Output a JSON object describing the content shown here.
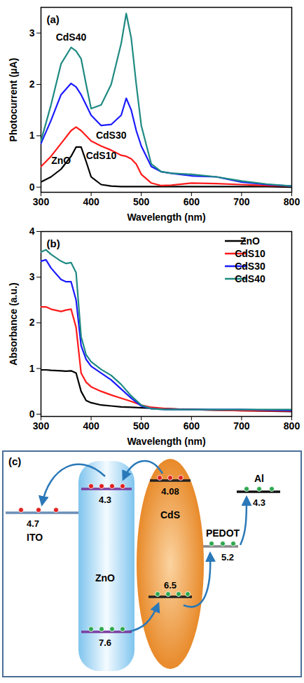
{
  "chart_data": [
    {
      "type": "line",
      "title": "(a)",
      "xlabel": "Wavelength (nm)",
      "ylabel": "Photocurrent (μA)",
      "x": [
        300,
        320,
        340,
        360,
        370,
        380,
        390,
        400,
        420,
        440,
        460,
        470,
        480,
        490,
        500,
        520,
        540,
        560,
        600,
        650,
        700,
        750,
        800
      ],
      "xlim": [
        300,
        800
      ],
      "xticks": [
        300,
        400,
        500,
        600,
        700,
        800
      ],
      "ylim": [
        -0.1,
        3.5
      ],
      "yticks": [
        0,
        1,
        2,
        3
      ],
      "series": [
        {
          "name": "ZnO",
          "color": "#000000",
          "values": [
            0.1,
            0.2,
            0.35,
            0.6,
            0.78,
            0.78,
            0.5,
            0.2,
            0.05,
            0.02,
            0.01,
            0.01,
            0.01,
            0.01,
            0.01,
            0.01,
            0.01,
            0.01,
            0.01,
            0.01,
            0.01,
            0.01,
            0
          ]
        },
        {
          "name": "CdS10",
          "color": "#ff1a1a",
          "values": [
            0.4,
            0.6,
            0.85,
            1.1,
            1.17,
            1.1,
            1.0,
            0.9,
            0.8,
            0.72,
            0.62,
            0.6,
            0.55,
            0.45,
            0.25,
            0.08,
            0.03,
            0.04,
            0.08,
            0.07,
            0.05,
            0.03,
            0.02
          ]
        },
        {
          "name": "CdS30",
          "color": "#1a1aff",
          "values": [
            0.85,
            1.3,
            1.8,
            2.02,
            1.95,
            1.8,
            1.6,
            1.4,
            1.2,
            1.22,
            1.4,
            1.73,
            1.5,
            1.1,
            0.8,
            0.4,
            0.3,
            0.27,
            0.22,
            0.2,
            0.1,
            0.05,
            0.02
          ]
        },
        {
          "name": "CdS40",
          "color": "#1f8a82",
          "values": [
            0.9,
            1.6,
            2.4,
            2.72,
            2.65,
            2.5,
            2.0,
            1.53,
            1.6,
            2.0,
            2.8,
            3.38,
            2.9,
            2.0,
            1.2,
            0.45,
            0.3,
            0.27,
            0.25,
            0.2,
            0.12,
            0.06,
            0.02
          ]
        }
      ]
    },
    {
      "type": "line",
      "title": "(b)",
      "xlabel": "Wavelength (nm)",
      "ylabel": "Absorbance (a.u.)",
      "x": [
        300,
        310,
        320,
        340,
        350,
        360,
        370,
        380,
        390,
        400,
        420,
        440,
        460,
        480,
        500,
        520,
        550,
        600,
        700,
        800
      ],
      "xlim": [
        300,
        800
      ],
      "xticks": [
        300,
        400,
        500,
        600,
        700,
        800
      ],
      "ylim": [
        -0.05,
        4
      ],
      "yticks": [
        0,
        1,
        2,
        3,
        4
      ],
      "legend": "top-right",
      "series": [
        {
          "name": "ZnO",
          "color": "#000000",
          "values": [
            0.97,
            0.97,
            0.96,
            0.95,
            0.94,
            0.95,
            0.9,
            0.5,
            0.3,
            0.25,
            0.2,
            0.18,
            0.16,
            0.15,
            0.14,
            0.13,
            0.12,
            0.1,
            0.08,
            0.06
          ]
        },
        {
          "name": "CdS10",
          "color": "#ff1a1a",
          "values": [
            2.35,
            2.35,
            2.3,
            2.25,
            2.28,
            2.3,
            1.9,
            0.9,
            0.7,
            0.6,
            0.5,
            0.42,
            0.35,
            0.28,
            0.2,
            0.15,
            0.12,
            0.1,
            0.08,
            0.07
          ]
        },
        {
          "name": "CdS30",
          "color": "#1a1aff",
          "values": [
            3.35,
            3.38,
            3.2,
            2.95,
            2.9,
            2.9,
            2.5,
            1.5,
            1.2,
            1.05,
            0.9,
            0.75,
            0.55,
            0.35,
            0.18,
            0.12,
            0.1,
            0.1,
            0.1,
            0.08
          ]
        },
        {
          "name": "CdS40",
          "color": "#1f8a82",
          "values": [
            3.55,
            3.6,
            3.5,
            3.35,
            3.3,
            3.32,
            3.1,
            1.7,
            1.3,
            1.15,
            0.98,
            0.85,
            0.65,
            0.4,
            0.2,
            0.12,
            0.1,
            0.1,
            0.1,
            0.1
          ]
        }
      ]
    }
  ],
  "diagram": {
    "label": "(c)",
    "layers": [
      {
        "name": "ITO",
        "levels": [
          4.7
        ]
      },
      {
        "name": "ZnO",
        "levels": [
          4.3,
          7.6
        ]
      },
      {
        "name": "CdS",
        "levels": [
          4.08,
          6.5
        ]
      },
      {
        "name": "PEDOT",
        "levels": [
          5.2
        ]
      },
      {
        "name": "Al",
        "levels": [
          4.3
        ]
      }
    ]
  }
}
